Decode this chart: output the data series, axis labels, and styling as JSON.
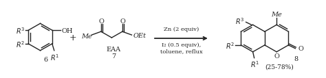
{
  "bg_color": "#ffffff",
  "text_color": "#222222",
  "arrow_label_top": "Zn (2 equiv)",
  "arrow_label_mid": "I₂ (0.5 equiv),",
  "arrow_label_bot": "toluene, reflux",
  "compound6_label": "6",
  "compound7_label": "7",
  "compound7_name": "EAA",
  "compound8_label": "8",
  "compound8_yield": "(25-78%)",
  "plus_sign": "+",
  "Me_label": "Me",
  "OEt_label": "OEt",
  "OH_label": "OH",
  "O_label": "O",
  "fig_width": 4.74,
  "fig_height": 1.15,
  "dpi": 100
}
